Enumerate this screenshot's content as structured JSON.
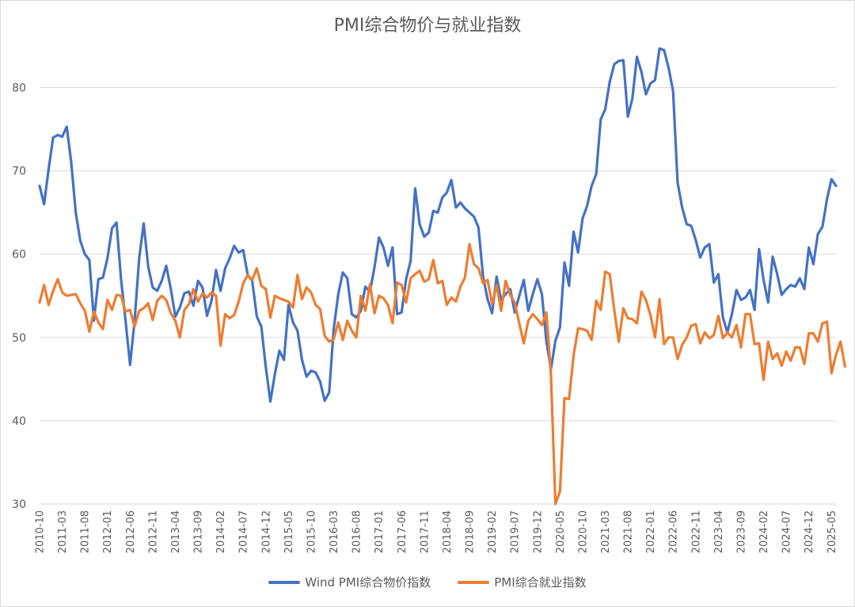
{
  "chart_data": {
    "type": "line",
    "title": "PMI综合物价与就业指数",
    "start": "2010-10",
    "months": 177,
    "ylim": [
      30,
      85
    ],
    "yticks": [
      30,
      40,
      50,
      60,
      70,
      80
    ],
    "xtick_labels": [
      "2010-10",
      "2011-03",
      "2011-08",
      "2012-01",
      "2012-06",
      "2012-11",
      "2013-04",
      "2013-09",
      "2014-02",
      "2014-07",
      "2014-12",
      "2015-05",
      "2015-10",
      "2016-03",
      "2016-08",
      "2017-01",
      "2017-06",
      "2017-11",
      "2018-04",
      "2018-09",
      "2019-02",
      "2019-07",
      "2019-12",
      "2020-05",
      "2020-10",
      "2021-03",
      "2021-08",
      "2022-01",
      "2022-06",
      "2022-11",
      "2023-04",
      "2023-09",
      "2024-02",
      "2024-07",
      "2024-12",
      "2025-05"
    ],
    "grid": true,
    "legend": "bottom",
    "series": [
      {
        "name": "Wind PMI综合物价指数",
        "color": "#4472C4",
        "values": [
          68.2,
          66.0,
          70.2,
          74.0,
          74.3,
          74.1,
          75.3,
          71.0,
          65.0,
          61.6,
          60.0,
          59.3,
          52.0,
          57.0,
          57.2,
          59.5,
          63.1,
          63.8,
          57.0,
          52.0,
          46.7,
          52.0,
          59.5,
          63.7,
          58.5,
          56.0,
          55.6,
          56.8,
          58.6,
          55.8,
          52.5,
          53.6,
          55.3,
          55.5,
          53.8,
          56.8,
          56.0,
          52.6,
          54.4,
          58.1,
          55.6,
          58.3,
          59.5,
          61.0,
          60.2,
          60.5,
          57.5,
          56.8,
          52.5,
          51.3,
          46.4,
          42.3,
          45.6,
          48.4,
          47.3,
          53.9,
          51.8,
          50.8,
          47.3,
          45.3,
          46.0,
          45.8,
          44.7,
          42.4,
          43.4,
          51.0,
          55.2,
          57.8,
          57.1,
          52.8,
          52.4,
          53.2,
          56.1,
          55.5,
          58.4,
          62.0,
          60.8,
          58.6,
          60.8,
          52.8,
          53.0,
          57.0,
          59.2,
          67.9,
          63.6,
          62.1,
          62.6,
          65.2,
          65.0,
          66.8,
          67.4,
          68.9,
          65.6,
          66.2,
          65.5,
          65.0,
          64.5,
          63.2,
          57.3,
          54.6,
          52.9,
          57.3,
          54.5,
          55.2,
          55.8,
          53.0,
          55.0,
          56.9,
          53.2,
          55.2,
          57.0,
          55.2,
          49.5,
          46.2,
          49.6,
          51.2,
          59.0,
          56.2,
          62.7,
          60.2,
          64.3,
          65.8,
          68.2,
          69.6,
          76.2,
          77.4,
          80.7,
          82.8,
          83.2,
          83.3,
          76.5,
          78.7,
          83.7,
          81.9,
          79.2,
          80.5,
          80.9,
          84.7,
          84.5,
          82.4,
          79.6,
          68.6,
          65.6,
          63.6,
          63.4,
          61.7,
          59.6,
          60.8,
          61.2,
          56.6,
          57.6,
          52.4,
          50.6,
          52.8,
          55.7,
          54.5,
          54.8,
          55.7,
          53.3,
          60.6,
          56.9,
          54.2,
          59.7,
          57.6,
          55.1,
          55.8,
          56.3,
          56.1,
          57.1,
          55.8,
          60.8,
          58.8,
          62.4,
          63.3,
          66.6,
          69.0,
          68.2
        ]
      },
      {
        "name": "PMI综合就业指数",
        "color": "#ED7D31",
        "values": [
          54.2,
          56.3,
          53.9,
          55.6,
          57.0,
          55.4,
          55.0,
          55.1,
          55.2,
          54.1,
          53.2,
          50.7,
          53.1,
          51.8,
          51.0,
          54.5,
          53.3,
          55.1,
          55.0,
          53.1,
          53.3,
          51.3,
          53.2,
          53.5,
          54.1,
          52.1,
          54.4,
          55.0,
          54.5,
          52.9,
          52.0,
          50.0,
          53.3,
          54.0,
          55.8,
          54.3,
          55.3,
          54.8,
          55.4,
          55.0,
          49.0,
          52.8,
          52.3,
          52.7,
          54.3,
          56.5,
          57.5,
          56.9,
          58.3,
          56.2,
          55.8,
          52.4,
          55.0,
          54.7,
          54.5,
          54.3,
          53.6,
          57.5,
          54.6,
          56.0,
          55.4,
          53.9,
          53.4,
          50.2,
          49.5,
          49.8,
          51.8,
          49.7,
          52.0,
          50.8,
          50.0,
          55.0,
          53.2,
          56.4,
          52.9,
          55.0,
          54.7,
          53.9,
          51.7,
          56.6,
          56.3,
          54.2,
          57.1,
          57.6,
          58.0,
          56.7,
          57.0,
          59.3,
          56.5,
          56.8,
          53.9,
          54.8,
          54.3,
          56.1,
          57.2,
          61.2,
          58.8,
          58.3,
          56.5,
          56.9,
          54.0,
          56.3,
          53.2,
          56.8,
          55.1,
          54.2,
          51.7,
          49.3,
          52.0,
          52.8,
          52.2,
          51.5,
          53.0,
          45.6,
          30.0,
          31.5,
          42.7,
          42.6,
          47.8,
          51.1,
          51.0,
          50.8,
          49.7,
          54.4,
          53.3,
          57.9,
          57.6,
          53.3,
          49.5,
          53.5,
          52.3,
          52.2,
          51.7,
          55.5,
          54.5,
          52.7,
          50.0,
          54.6,
          49.2,
          50.0,
          50.0,
          47.4,
          49.1,
          50.0,
          51.4,
          51.6,
          49.3,
          50.6,
          49.9,
          50.3,
          52.6,
          49.9,
          50.6,
          50.0,
          51.5,
          48.8,
          52.8,
          52.8,
          49.2,
          49.3,
          44.9,
          49.5,
          47.4,
          48.1,
          46.6,
          48.3,
          47.2,
          48.8,
          48.8,
          46.8,
          50.5,
          50.5,
          49.5,
          51.7,
          51.9,
          45.7,
          47.9,
          49.5,
          46.5
        ]
      }
    ]
  }
}
